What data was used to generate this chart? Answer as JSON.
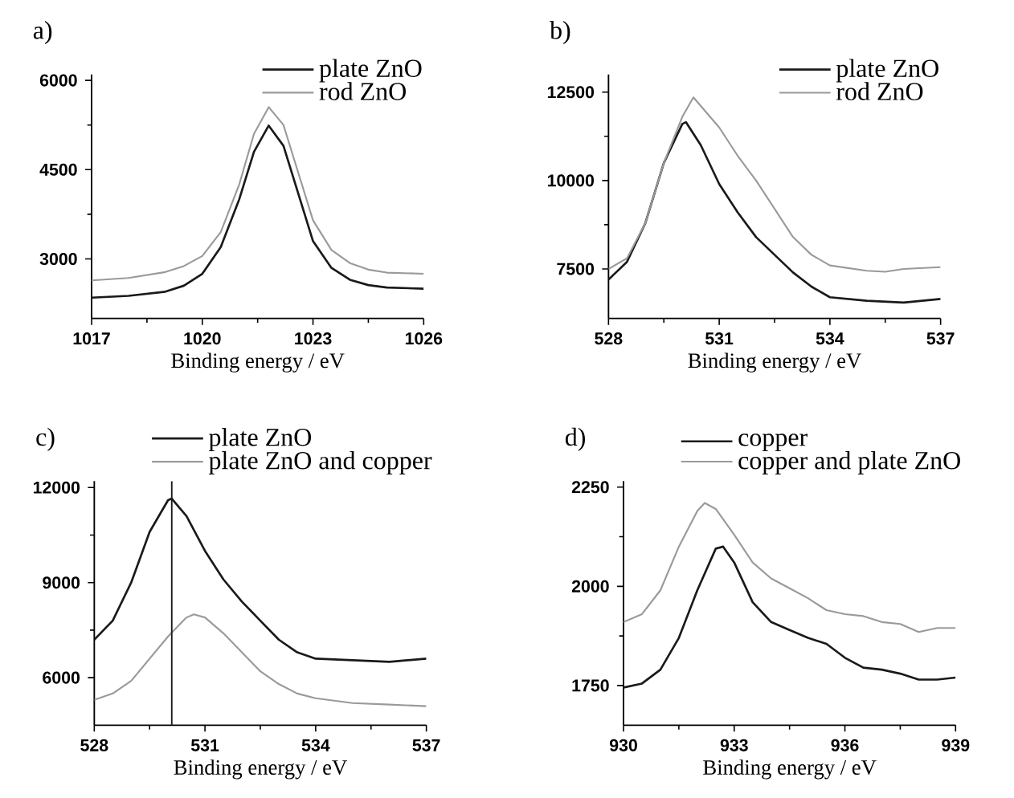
{
  "chart_data": [
    {
      "type": "line",
      "title": "a)",
      "xlabel": "Binding energy / eV",
      "xlim": [
        1017,
        1026
      ],
      "ylim": [
        2000,
        6100
      ],
      "xticks": [
        1017,
        1020,
        1023,
        1026
      ],
      "yticks": [
        3000,
        4500,
        6000
      ],
      "legend": "top right",
      "series": [
        {
          "name": "plate ZnO",
          "color": "#1a1a1a",
          "x": [
            1017,
            1018,
            1019,
            1019.5,
            1020,
            1020.5,
            1021,
            1021.4,
            1021.8,
            1022.2,
            1022.6,
            1023,
            1023.5,
            1024,
            1024.5,
            1025,
            1026
          ],
          "values": [
            2350,
            2380,
            2450,
            2550,
            2750,
            3200,
            4000,
            4800,
            5240,
            4900,
            4100,
            3300,
            2850,
            2650,
            2560,
            2520,
            2500
          ]
        },
        {
          "name": "rod ZnO",
          "color": "#9a9a9a",
          "x": [
            1017,
            1018,
            1019,
            1019.5,
            1020,
            1020.5,
            1021,
            1021.4,
            1021.8,
            1022.2,
            1022.6,
            1023,
            1023.5,
            1024,
            1024.5,
            1025,
            1026
          ],
          "values": [
            2640,
            2680,
            2780,
            2880,
            3050,
            3450,
            4250,
            5100,
            5550,
            5250,
            4450,
            3650,
            3150,
            2930,
            2820,
            2770,
            2750
          ]
        }
      ]
    },
    {
      "type": "line",
      "title": "b)",
      "xlabel": "Binding energy / eV",
      "xlim": [
        528,
        537
      ],
      "ylim": [
        6100,
        13000
      ],
      "xticks": [
        528,
        531,
        534,
        537
      ],
      "yticks": [
        7500,
        10000,
        12500
      ],
      "legend": "top right",
      "series": [
        {
          "name": "plate ZnO",
          "color": "#1a1a1a",
          "x": [
            528,
            528.5,
            529,
            529.5,
            530,
            530.1,
            530.5,
            531,
            531.5,
            532,
            532.5,
            533,
            533.5,
            534,
            535,
            536,
            537
          ],
          "values": [
            7200,
            7700,
            8800,
            10500,
            11600,
            11650,
            11000,
            9900,
            9100,
            8400,
            7900,
            7400,
            7000,
            6700,
            6600,
            6550,
            6650
          ]
        },
        {
          "name": "rod ZnO",
          "color": "#9a9a9a",
          "x": [
            528,
            528.5,
            529,
            529.5,
            530,
            530.3,
            531,
            531.5,
            532,
            532.5,
            533,
            533.5,
            534,
            535,
            535.5,
            536,
            537
          ],
          "values": [
            7500,
            7800,
            8800,
            10500,
            11800,
            12350,
            11500,
            10700,
            10000,
            9200,
            8400,
            7900,
            7600,
            7450,
            7420,
            7500,
            7550
          ]
        }
      ]
    },
    {
      "type": "line",
      "title": "c)",
      "xlabel": "Binding energy / eV",
      "xlim": [
        528,
        537
      ],
      "ylim": [
        4500,
        12200
      ],
      "xticks": [
        528,
        531,
        534,
        537
      ],
      "yticks": [
        6000,
        9000,
        12000
      ],
      "legend": "top",
      "ref_lines": [
        {
          "axis": "x",
          "value": 530.1,
          "color": "#1a1a1a"
        }
      ],
      "series": [
        {
          "name": "plate ZnO",
          "color": "#1a1a1a",
          "x": [
            528,
            528.5,
            529,
            529.5,
            530,
            530.1,
            530.5,
            531,
            531.5,
            532,
            532.5,
            533,
            533.5,
            534,
            535,
            536,
            537
          ],
          "values": [
            7200,
            7800,
            9000,
            10600,
            11600,
            11650,
            11100,
            10000,
            9100,
            8400,
            7800,
            7200,
            6800,
            6600,
            6550,
            6500,
            6600
          ]
        },
        {
          "name": "plate ZnO and copper",
          "color": "#9a9a9a",
          "x": [
            528,
            528.5,
            529,
            529.5,
            530,
            530.5,
            530.7,
            531,
            531.5,
            532,
            532.5,
            533,
            533.5,
            534,
            535,
            536,
            537
          ],
          "values": [
            5300,
            5500,
            5900,
            6600,
            7300,
            7900,
            8000,
            7900,
            7400,
            6800,
            6200,
            5800,
            5500,
            5350,
            5200,
            5150,
            5100
          ]
        }
      ]
    },
    {
      "type": "line",
      "title": "d)",
      "xlabel": "Binding energy / eV",
      "xlim": [
        930,
        939
      ],
      "ylim": [
        1650,
        2265
      ],
      "xticks": [
        930,
        933,
        936,
        939
      ],
      "yticks": [
        1750,
        2000,
        2250
      ],
      "legend": "top",
      "series": [
        {
          "name": "copper",
          "color": "#1a1a1a",
          "x": [
            930,
            930.5,
            931,
            931.5,
            932,
            932.5,
            932.7,
            933,
            933.5,
            934,
            934.5,
            935,
            935.5,
            936,
            936.5,
            937,
            937.5,
            938,
            938.5,
            939
          ],
          "values": [
            1745,
            1755,
            1790,
            1870,
            1990,
            2095,
            2100,
            2060,
            1960,
            1910,
            1890,
            1870,
            1855,
            1820,
            1795,
            1790,
            1780,
            1765,
            1765,
            1770
          ]
        },
        {
          "name": "copper and plate ZnO",
          "color": "#9a9a9a",
          "x": [
            930,
            930.5,
            931,
            931.5,
            932,
            932.2,
            932.5,
            933,
            933.5,
            934,
            934.5,
            935,
            935.5,
            936,
            936.5,
            937,
            937.5,
            938,
            938.5,
            939
          ],
          "values": [
            1910,
            1930,
            1990,
            2100,
            2190,
            2210,
            2195,
            2130,
            2060,
            2020,
            1995,
            1970,
            1940,
            1930,
            1925,
            1910,
            1905,
            1885,
            1895,
            1895
          ]
        }
      ]
    }
  ]
}
